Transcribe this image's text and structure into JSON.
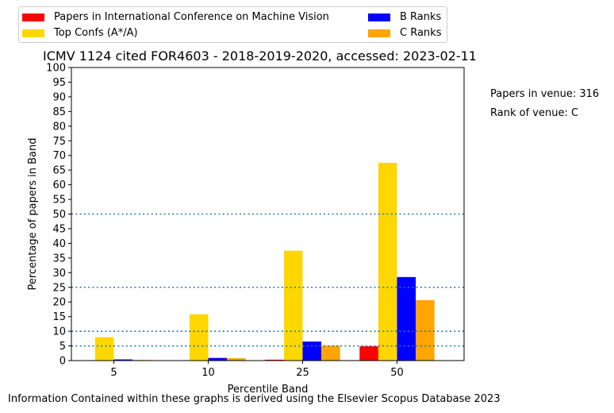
{
  "chart_data": {
    "type": "bar",
    "title": "ICMV 1124 cited FOR4603 - 2018-2019-2020, accessed: 2023-02-11",
    "xlabel": "Percentile Band",
    "ylabel": "Percentage of papers in Band",
    "categories": [
      "5",
      "10",
      "25",
      "50"
    ],
    "ylim": [
      0,
      100
    ],
    "yticks": [
      0,
      5,
      10,
      15,
      20,
      25,
      30,
      35,
      40,
      45,
      50,
      55,
      60,
      65,
      70,
      75,
      80,
      85,
      90,
      95,
      100
    ],
    "reference_lines": [
      5,
      10,
      25,
      50
    ],
    "series": [
      {
        "name": "Papers in International Conference on Machine Vision",
        "color": "#ff0000",
        "values": [
          0,
          0,
          0.3,
          4.9
        ]
      },
      {
        "name": "Top Confs (A*/A)",
        "color": "#ffd700",
        "values": [
          8.0,
          15.8,
          37.5,
          67.5
        ]
      },
      {
        "name": "B Ranks",
        "color": "#0000ff",
        "values": [
          0.4,
          0.9,
          6.5,
          28.5
        ]
      },
      {
        "name": "C Ranks",
        "color": "#ffa500",
        "values": [
          0.2,
          0.8,
          5.1,
          20.6
        ]
      }
    ]
  },
  "annotations": {
    "papers_in_venue": "Papers in venue: 316",
    "rank_of_venue": "Rank of venue: C"
  },
  "footer": "Information Contained within these graphs is derived using the Elsevier Scopus Database 2023"
}
